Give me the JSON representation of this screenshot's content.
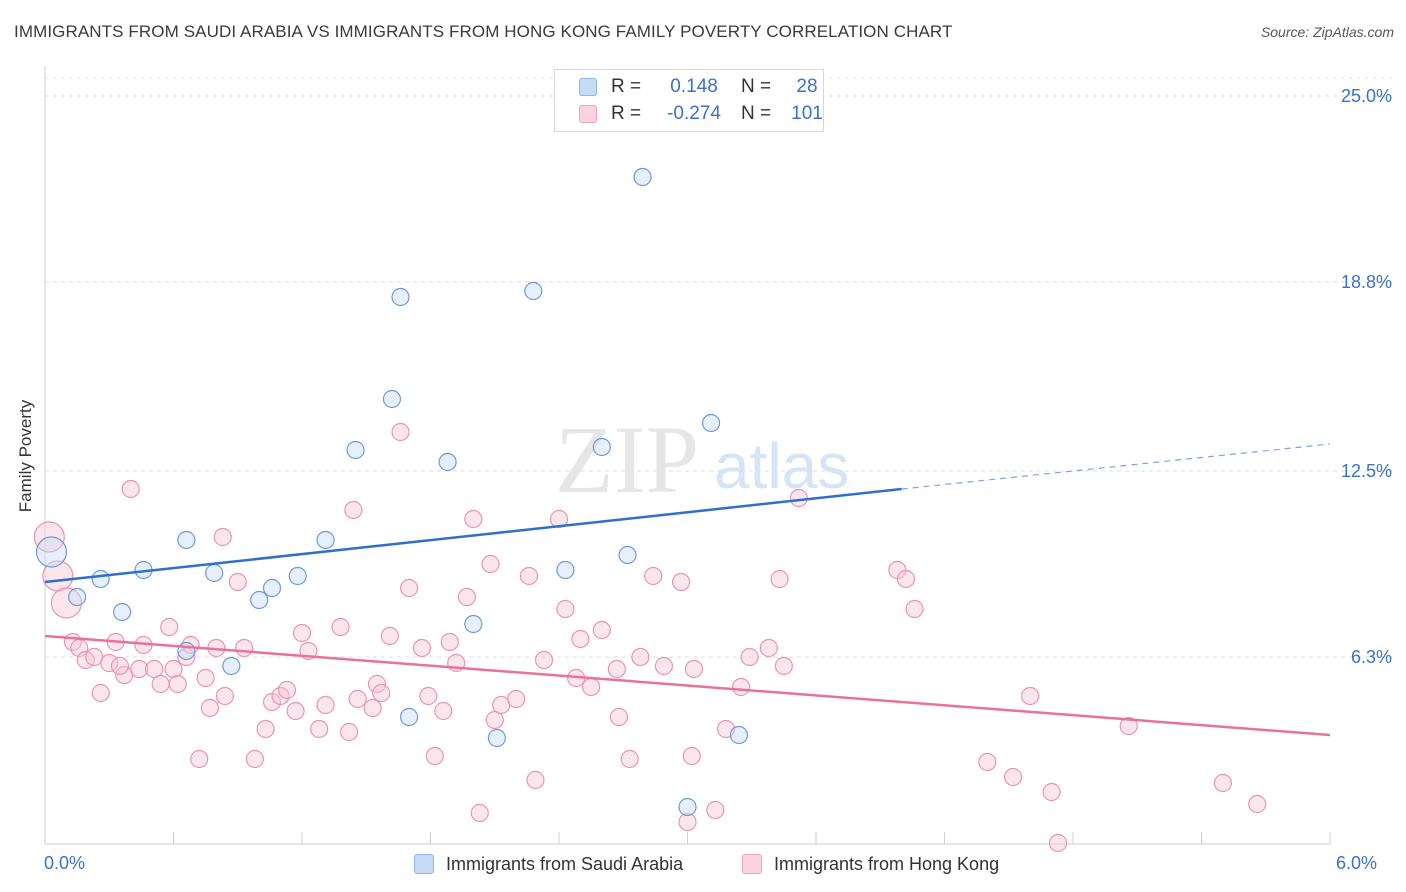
{
  "title": "IMMIGRANTS FROM SAUDI ARABIA VS IMMIGRANTS FROM HONG KONG FAMILY POVERTY CORRELATION CHART",
  "source": "Source: ZipAtlas.com",
  "legend": {
    "rows": [
      {
        "r_label": "R =",
        "r_value": "0.148",
        "n_label": "N =",
        "n_value": "28"
      },
      {
        "r_label": "R =",
        "r_value": "-0.274",
        "n_label": "N =",
        "n_value": "101"
      }
    ]
  },
  "watermark": {
    "zip": "ZIP",
    "atlas": "atlas"
  },
  "colors": {
    "blue": "#a9c8f0",
    "blue_line": "#2f6fce",
    "pink": "#f6b8cd",
    "pink_line": "#e8729b",
    "tick_text": "#3b72c9"
  },
  "chart_data": {
    "type": "scatter",
    "title": "IMMIGRANTS FROM SAUDI ARABIA VS IMMIGRANTS FROM HONG KONG FAMILY POVERTY CORRELATION CHART",
    "xlabel": "",
    "ylabel": "Family Poverty",
    "xlim": [
      0,
      6
    ],
    "ylim": [
      0,
      26
    ],
    "x_tick_labels": [
      "0.0%",
      "6.0%"
    ],
    "y_ticks": [
      6.3,
      12.5,
      18.8,
      25.0
    ],
    "y_tick_labels": [
      "6.3%",
      "12.5%",
      "18.8%",
      "25.0%"
    ],
    "grid": true,
    "legend_position": "top-center",
    "series": [
      {
        "name": "Immigrants from Saudi Arabia",
        "color": "#a9c8f0",
        "r": 0.148,
        "n": 28,
        "trend": {
          "x": [
            0,
            4.0
          ],
          "y": [
            8.8,
            11.9
          ],
          "dash_to": [
            6.0,
            13.4
          ]
        },
        "points": [
          [
            0.03,
            9.8,
            1
          ],
          [
            0.15,
            8.3,
            0
          ],
          [
            0.26,
            8.9,
            0
          ],
          [
            0.36,
            7.8,
            0
          ],
          [
            0.46,
            9.2,
            0
          ],
          [
            0.66,
            10.2,
            0
          ],
          [
            0.66,
            6.5,
            0
          ],
          [
            0.79,
            9.1,
            0
          ],
          [
            0.87,
            6.0,
            0
          ],
          [
            1.0,
            8.2,
            0
          ],
          [
            1.06,
            8.6,
            0
          ],
          [
            1.18,
            9.0,
            0
          ],
          [
            1.31,
            10.2,
            0
          ],
          [
            1.45,
            13.2,
            0
          ],
          [
            1.62,
            14.9,
            0
          ],
          [
            1.66,
            18.3,
            0
          ],
          [
            1.7,
            4.3,
            0
          ],
          [
            1.88,
            12.8,
            0
          ],
          [
            2.0,
            7.4,
            0
          ],
          [
            2.11,
            3.6,
            0
          ],
          [
            2.28,
            18.5,
            0
          ],
          [
            2.43,
            9.2,
            0
          ],
          [
            2.6,
            13.3,
            0
          ],
          [
            2.72,
            9.7,
            0
          ],
          [
            2.79,
            22.3,
            0
          ],
          [
            3.0,
            1.3,
            0
          ],
          [
            3.11,
            14.1,
            0
          ],
          [
            3.24,
            3.7,
            0
          ]
        ]
      },
      {
        "name": "Immigrants from Hong Kong",
        "color": "#f6b8cd",
        "r": -0.274,
        "n": 101,
        "trend": {
          "x": [
            0,
            6.0
          ],
          "y": [
            7.0,
            3.7
          ]
        },
        "points": [
          [
            0.02,
            10.3,
            1
          ],
          [
            0.06,
            9.0,
            1
          ],
          [
            0.1,
            8.1,
            1
          ],
          [
            0.13,
            6.8,
            0
          ],
          [
            0.16,
            6.6,
            0
          ],
          [
            0.19,
            6.2,
            0
          ],
          [
            0.23,
            6.3,
            0
          ],
          [
            0.26,
            5.1,
            0
          ],
          [
            0.3,
            6.1,
            0
          ],
          [
            0.33,
            6.8,
            0
          ],
          [
            0.37,
            5.7,
            0
          ],
          [
            0.4,
            11.9,
            0
          ],
          [
            0.44,
            5.9,
            0
          ],
          [
            0.46,
            6.7,
            0
          ],
          [
            0.51,
            5.9,
            0
          ],
          [
            0.54,
            5.4,
            0
          ],
          [
            0.58,
            7.3,
            0
          ],
          [
            0.6,
            5.9,
            0
          ],
          [
            0.62,
            5.4,
            0
          ],
          [
            0.66,
            6.3,
            0
          ],
          [
            0.68,
            6.7,
            0
          ],
          [
            0.72,
            2.9,
            0
          ],
          [
            0.75,
            5.6,
            0
          ],
          [
            0.77,
            4.6,
            0
          ],
          [
            0.8,
            6.6,
            0
          ],
          [
            0.83,
            10.3,
            0
          ],
          [
            0.84,
            5.0,
            0
          ],
          [
            0.9,
            8.8,
            0
          ],
          [
            0.93,
            6.6,
            0
          ],
          [
            0.98,
            2.9,
            0
          ],
          [
            1.03,
            3.9,
            0
          ],
          [
            1.06,
            4.8,
            0
          ],
          [
            1.1,
            5.0,
            0
          ],
          [
            1.13,
            5.2,
            0
          ],
          [
            1.17,
            4.5,
            0
          ],
          [
            1.2,
            7.1,
            0
          ],
          [
            1.23,
            6.5,
            0
          ],
          [
            1.28,
            3.9,
            0
          ],
          [
            1.31,
            4.7,
            0
          ],
          [
            1.38,
            7.3,
            0
          ],
          [
            1.42,
            3.8,
            0
          ],
          [
            1.44,
            11.2,
            0
          ],
          [
            1.46,
            4.9,
            0
          ],
          [
            1.53,
            4.6,
            0
          ],
          [
            1.55,
            5.4,
            0
          ],
          [
            1.57,
            5.1,
            0
          ],
          [
            1.61,
            7.0,
            0
          ],
          [
            1.66,
            13.8,
            0
          ],
          [
            1.7,
            8.6,
            0
          ],
          [
            1.76,
            6.6,
            0
          ],
          [
            1.79,
            5.0,
            0
          ],
          [
            1.82,
            3.0,
            0
          ],
          [
            1.86,
            4.5,
            0
          ],
          [
            1.89,
            6.8,
            0
          ],
          [
            1.92,
            6.1,
            0
          ],
          [
            1.97,
            8.3,
            0
          ],
          [
            2.0,
            10.9,
            0
          ],
          [
            2.03,
            1.1,
            0
          ],
          [
            2.08,
            9.4,
            0
          ],
          [
            2.1,
            4.2,
            0
          ],
          [
            2.13,
            4.7,
            0
          ],
          [
            2.2,
            4.9,
            0
          ],
          [
            2.26,
            9.0,
            0
          ],
          [
            2.29,
            2.2,
            0
          ],
          [
            2.33,
            6.2,
            0
          ],
          [
            2.4,
            10.9,
            0
          ],
          [
            2.43,
            7.9,
            0
          ],
          [
            2.48,
            5.6,
            0
          ],
          [
            2.5,
            6.9,
            0
          ],
          [
            2.55,
            5.3,
            0
          ],
          [
            2.6,
            7.2,
            0
          ],
          [
            2.67,
            5.9,
            0
          ],
          [
            2.68,
            4.3,
            0
          ],
          [
            2.73,
            2.9,
            0
          ],
          [
            2.78,
            6.3,
            0
          ],
          [
            2.84,
            9.0,
            0
          ],
          [
            2.89,
            6.0,
            0
          ],
          [
            2.97,
            8.8,
            0
          ],
          [
            3.0,
            0.8,
            0
          ],
          [
            3.02,
            3.0,
            0
          ],
          [
            3.03,
            5.9,
            0
          ],
          [
            3.13,
            1.2,
            0
          ],
          [
            3.18,
            3.9,
            0
          ],
          [
            3.25,
            5.3,
            0
          ],
          [
            3.29,
            6.3,
            0
          ],
          [
            3.38,
            6.6,
            0
          ],
          [
            3.43,
            8.9,
            0
          ],
          [
            3.45,
            6.0,
            0
          ],
          [
            3.52,
            11.6,
            0
          ],
          [
            3.98,
            9.2,
            0
          ],
          [
            4.02,
            8.9,
            0
          ],
          [
            4.06,
            7.9,
            0
          ],
          [
            4.4,
            2.8,
            0
          ],
          [
            4.52,
            2.3,
            0
          ],
          [
            4.6,
            5.0,
            0
          ],
          [
            4.7,
            1.8,
            0
          ],
          [
            4.73,
            0.1,
            0
          ],
          [
            5.06,
            4.0,
            0
          ],
          [
            5.5,
            2.1,
            0
          ],
          [
            5.66,
            1.4,
            0
          ],
          [
            0.35,
            6.0,
            0
          ]
        ]
      }
    ]
  }
}
